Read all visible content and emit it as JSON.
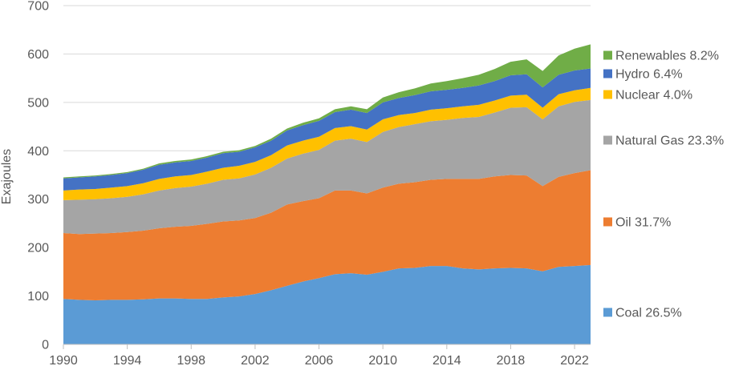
{
  "chart_data": {
    "type": "area",
    "stacked": true,
    "title": "",
    "xlabel": "",
    "ylabel": "Exajoules",
    "ylim": [
      0,
      700
    ],
    "yticks": [
      0,
      100,
      200,
      300,
      400,
      500,
      600,
      700
    ],
    "xlim": [
      1990,
      2023
    ],
    "xticks": [
      1990,
      1994,
      1998,
      2002,
      2006,
      2010,
      2014,
      2018,
      2022
    ],
    "grid": "horizontal",
    "legend_placement": "right",
    "x": [
      1990,
      1991,
      1992,
      1993,
      1994,
      1995,
      1996,
      1997,
      1998,
      1999,
      2000,
      2001,
      2002,
      2003,
      2004,
      2005,
      2006,
      2007,
      2008,
      2009,
      2010,
      2011,
      2012,
      2013,
      2014,
      2015,
      2016,
      2017,
      2018,
      2019,
      2020,
      2021,
      2022,
      2023
    ],
    "series": [
      {
        "name": "Coal",
        "legend": "Coal 26.5%",
        "color": "#5B9BD5",
        "values": [
          94,
          92,
          91,
          92,
          92,
          93,
          95,
          95,
          94,
          94,
          97,
          99,
          104,
          112,
          121,
          130,
          137,
          145,
          147,
          144,
          150,
          157,
          158,
          162,
          162,
          157,
          155,
          157,
          158,
          157,
          151,
          160,
          162,
          164
        ]
      },
      {
        "name": "Oil",
        "legend": "Oil 31.7%",
        "color": "#ED7D31",
        "values": [
          136,
          136,
          138,
          138,
          140,
          142,
          145,
          148,
          151,
          155,
          157,
          157,
          157,
          160,
          168,
          166,
          165,
          173,
          171,
          168,
          174,
          175,
          177,
          178,
          180,
          185,
          187,
          190,
          192,
          192,
          176,
          186,
          192,
          196
        ]
      },
      {
        "name": "Natural Gas",
        "legend": "Natural Gas 23.3%",
        "color": "#A5A5A5",
        "values": [
          68,
          71,
          71,
          72,
          73,
          75,
          78,
          80,
          81,
          83,
          86,
          87,
          90,
          93,
          95,
          98,
          100,
          103,
          107,
          106,
          115,
          117,
          120,
          121,
          122,
          126,
          128,
          132,
          139,
          141,
          138,
          146,
          147,
          145
        ]
      },
      {
        "name": "Nuclear",
        "legend": "Nuclear 4.0%",
        "color": "#FFC000",
        "values": [
          20,
          21,
          21,
          22,
          22,
          23,
          24,
          24,
          24,
          25,
          25,
          26,
          26,
          26,
          27,
          27,
          27,
          26,
          26,
          26,
          26,
          25,
          23,
          24,
          24,
          24,
          25,
          25,
          25,
          26,
          24,
          25,
          24,
          25
        ]
      },
      {
        "name": "Hydro",
        "legend": "Hydro 6.4%",
        "color": "#4472C4",
        "values": [
          25,
          25,
          26,
          26,
          27,
          28,
          29,
          29,
          29,
          29,
          30,
          29,
          30,
          30,
          31,
          32,
          33,
          33,
          34,
          34,
          35,
          35,
          37,
          38,
          38,
          38,
          40,
          40,
          42,
          42,
          42,
          40,
          41,
          40
        ]
      },
      {
        "name": "Renewables",
        "legend": "Renewables 8.2%",
        "color": "#70AD47",
        "values": [
          2,
          2,
          2,
          2,
          2,
          2,
          3,
          3,
          3,
          3,
          3,
          3,
          3,
          4,
          4,
          5,
          5,
          6,
          7,
          8,
          10,
          12,
          14,
          16,
          18,
          20,
          22,
          25,
          28,
          31,
          34,
          40,
          45,
          50
        ]
      }
    ]
  }
}
